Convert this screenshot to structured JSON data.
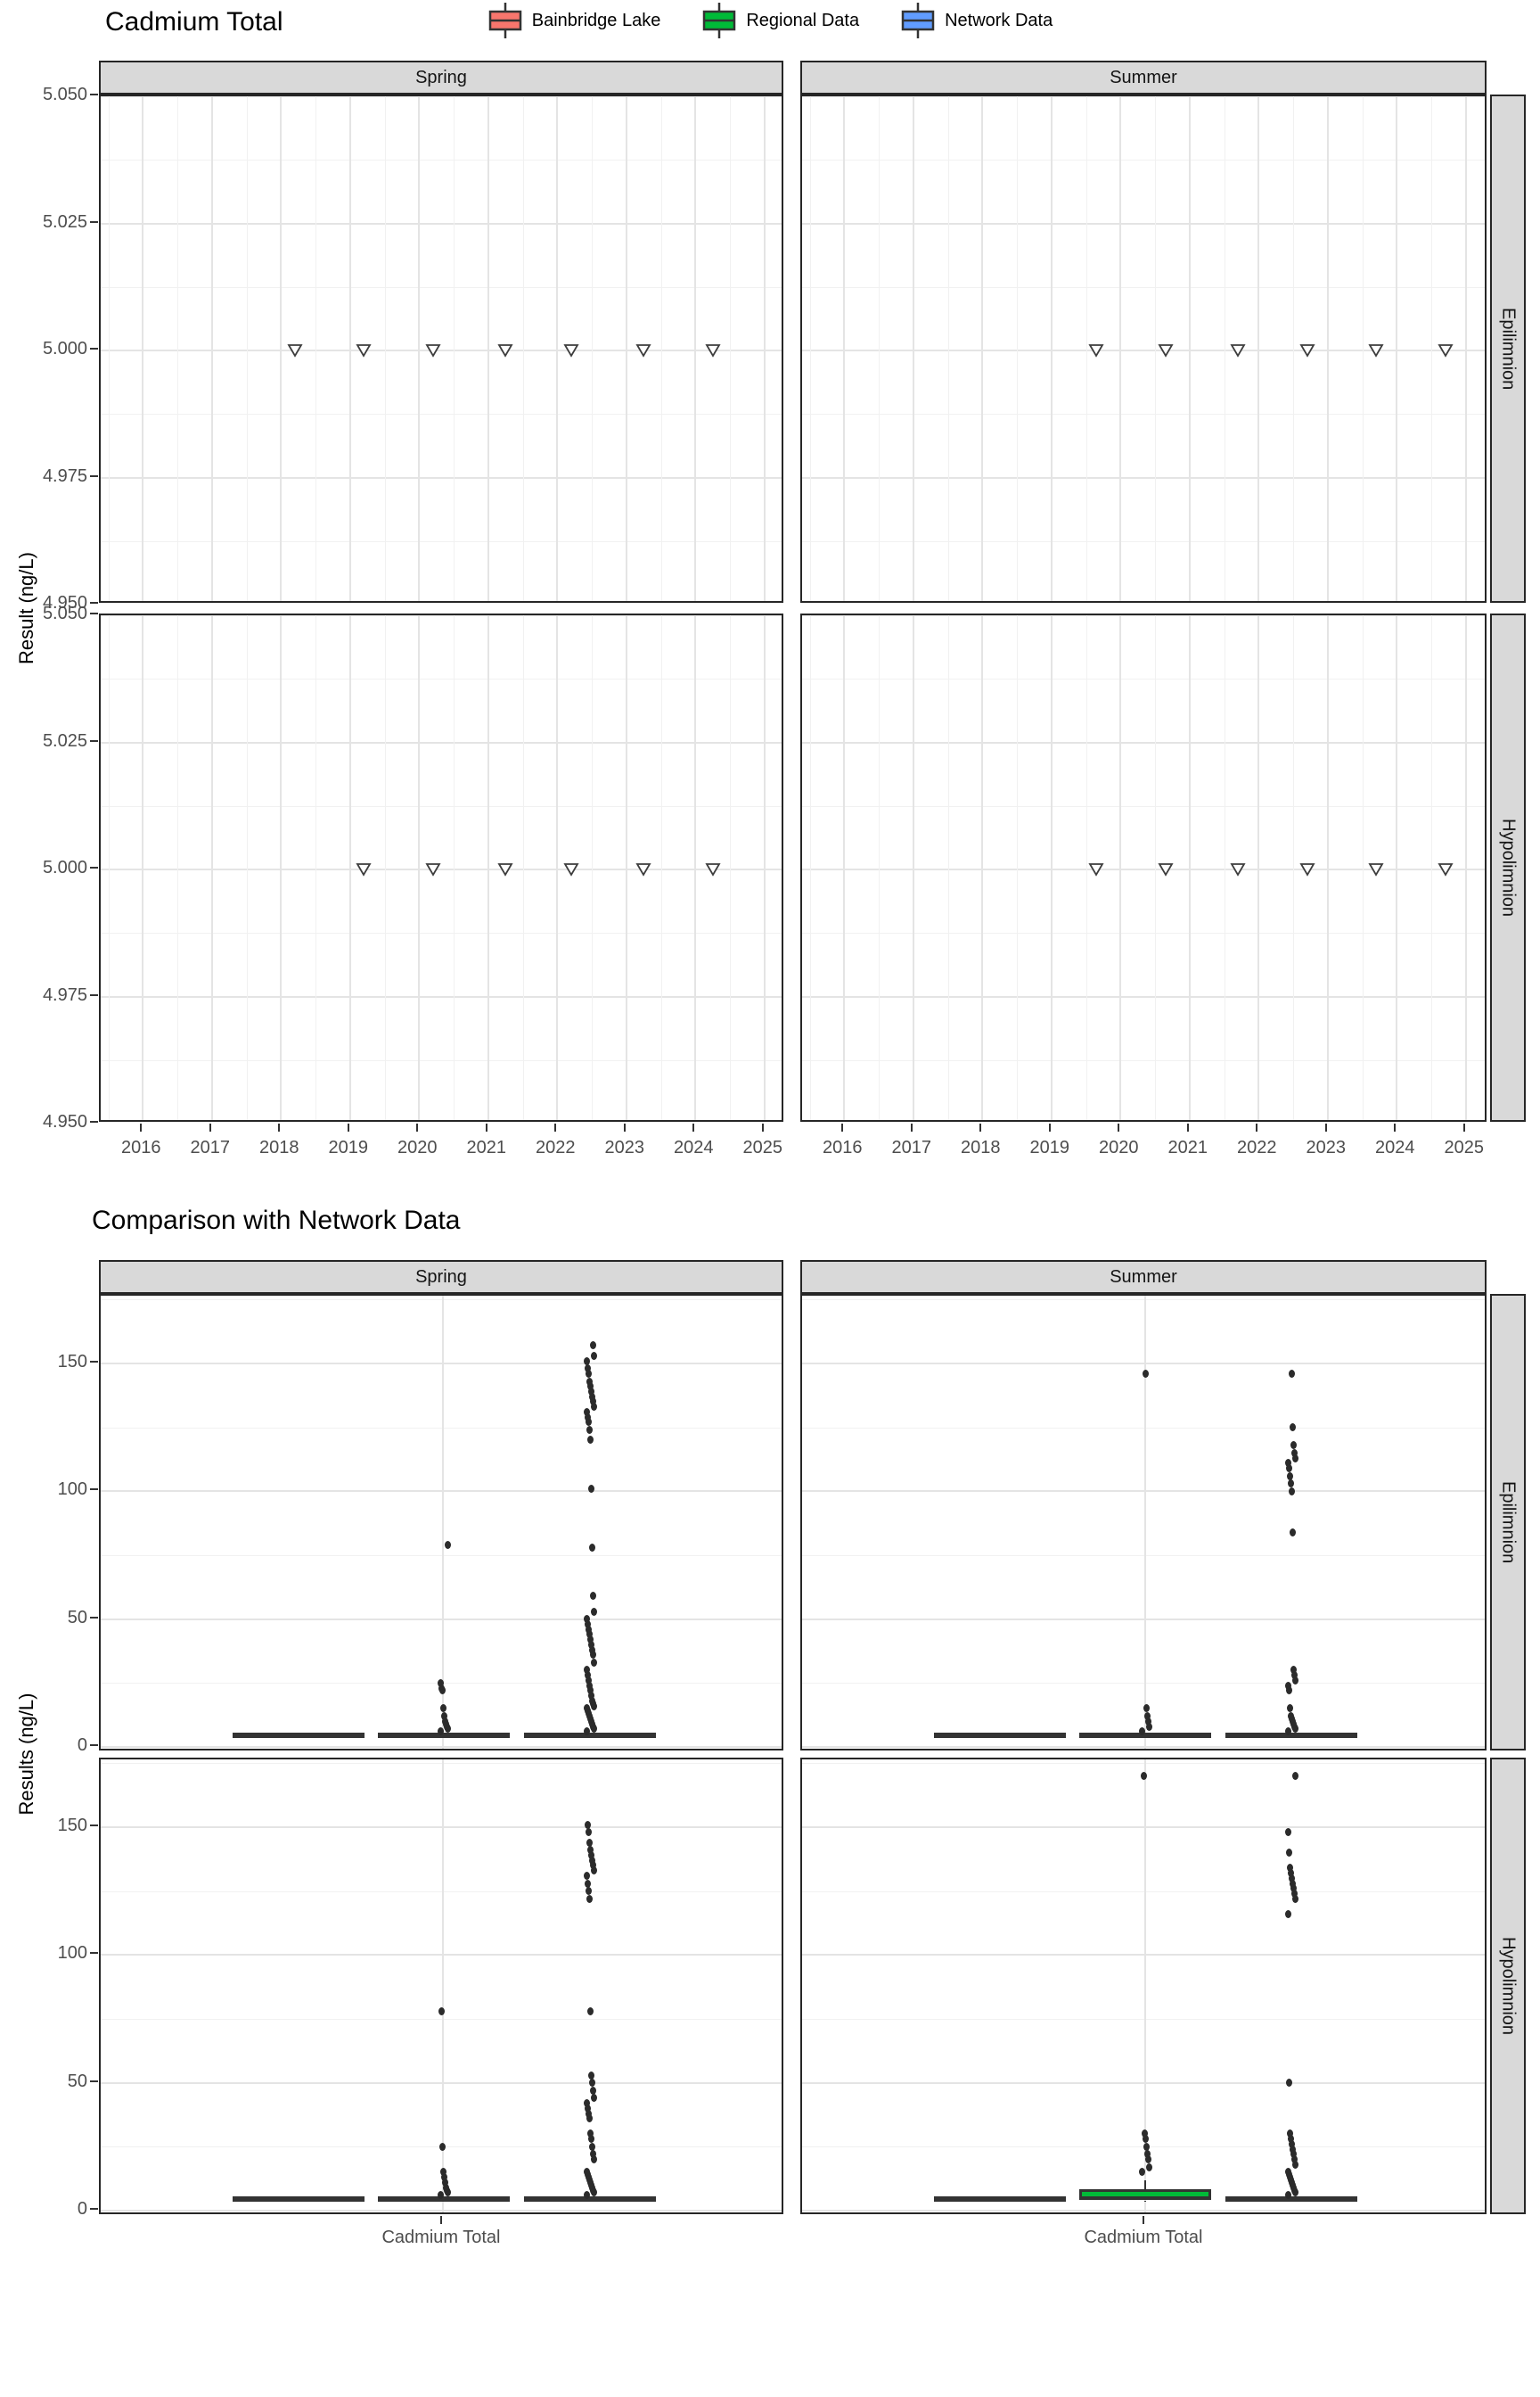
{
  "chart_data": [
    {
      "id": "plot1",
      "type": "scatter",
      "title": "Cadmium Total",
      "ylabel": "Result (ng/L)",
      "marker": "open-triangle-down",
      "facets": {
        "cols": [
          "Spring",
          "Summer"
        ],
        "rows": [
          "Epilimnion",
          "Hypolimnion"
        ]
      },
      "x_ticks": [
        2016,
        2017,
        2018,
        2019,
        2020,
        2021,
        2022,
        2023,
        2024,
        2025
      ],
      "xlim": [
        2015.39,
        2025.3
      ],
      "y_ticks": [
        "5.050",
        "5.025",
        "5.000",
        "4.975",
        "4.950"
      ],
      "ylim": [
        4.95,
        5.05
      ],
      "grid": true,
      "series": [
        {
          "facet_col": "Spring",
          "facet_row": "Epilimnion",
          "x": [
            2018.2,
            2019.2,
            2020.2,
            2021.25,
            2022.2,
            2023.25,
            2024.25
          ],
          "y": [
            5,
            5,
            5,
            5,
            5,
            5,
            5
          ]
        },
        {
          "facet_col": "Summer",
          "facet_row": "Epilimnion",
          "x": [
            2019.65,
            2020.65,
            2021.7,
            2022.7,
            2023.7,
            2024.7
          ],
          "y": [
            5,
            5,
            5,
            5,
            5,
            5
          ]
        },
        {
          "facet_col": "Spring",
          "facet_row": "Hypolimnion",
          "x": [
            2019.2,
            2020.2,
            2021.25,
            2022.2,
            2023.25,
            2024.25
          ],
          "y": [
            5,
            5,
            5,
            5,
            5,
            5
          ]
        },
        {
          "facet_col": "Summer",
          "facet_row": "Hypolimnion",
          "x": [
            2019.65,
            2020.65,
            2021.7,
            2022.7,
            2023.7,
            2024.7
          ],
          "y": [
            5,
            5,
            5,
            5,
            5,
            5
          ]
        }
      ]
    },
    {
      "id": "plot2",
      "type": "boxplot",
      "title": "Comparison with Network Data",
      "ylabel": "Results (ng/L)",
      "categories": [
        "Cadmium Total"
      ],
      "y_ticks": [
        0,
        50,
        100,
        150
      ],
      "ylim": [
        -2,
        176.5
      ],
      "facets": {
        "cols": [
          "Spring",
          "Summer"
        ],
        "rows": [
          "Epilimnion",
          "Hypolimnion"
        ]
      },
      "legend": {
        "position": "bottom",
        "entries": [
          {
            "label": "Bainbridge Lake",
            "color": "#F8766D"
          },
          {
            "label": "Regional Data",
            "color": "#00BA38"
          },
          {
            "label": "Network Data",
            "color": "#619CFF"
          }
        ]
      },
      "panels": [
        {
          "facet_col": "Spring",
          "facet_row": "Epilimnion",
          "boxes": [
            {
              "group": "Bainbridge Lake",
              "q1": 4.6,
              "median": 5,
              "q3": 5.4,
              "whisker_low": 4.6,
              "whisker_high": 5.4,
              "outliers": []
            },
            {
              "group": "Regional Data",
              "q1": 4.6,
              "median": 5,
              "q3": 5.4,
              "whisker_low": 4.6,
              "whisker_high": 5.4,
              "outliers": [
                6,
                7,
                8,
                9,
                10,
                12,
                15,
                22,
                23,
                25,
                79
              ]
            },
            {
              "group": "Network Data",
              "q1": 4.6,
              "median": 5,
              "q3": 5.4,
              "whisker_low": 4.6,
              "whisker_high": 5.4,
              "outliers": [
                6,
                7,
                8,
                9,
                10,
                11,
                12,
                13,
                14,
                15,
                16,
                17,
                18,
                20,
                22,
                24,
                26,
                28,
                30,
                33,
                36,
                38,
                40,
                42,
                44,
                46,
                48,
                50,
                53,
                59,
                78,
                101,
                120,
                124,
                127,
                129,
                131,
                133,
                135,
                137,
                139,
                141,
                143,
                146,
                148,
                151,
                153,
                157
              ]
            }
          ]
        },
        {
          "facet_col": "Summer",
          "facet_row": "Epilimnion",
          "boxes": [
            {
              "group": "Bainbridge Lake",
              "q1": 4.6,
              "median": 5,
              "q3": 5.4,
              "whisker_low": 4.6,
              "whisker_high": 5.4,
              "outliers": []
            },
            {
              "group": "Regional Data",
              "q1": 4.6,
              "median": 5,
              "q3": 5.4,
              "whisker_low": 4.6,
              "whisker_high": 5.4,
              "outliers": [
                6,
                8,
                10,
                12,
                15,
                146
              ]
            },
            {
              "group": "Network Data",
              "q1": 4.6,
              "median": 5,
              "q3": 5.4,
              "whisker_low": 4.6,
              "whisker_high": 5.4,
              "outliers": [
                6,
                7,
                8,
                9,
                10,
                11,
                12,
                15,
                22,
                24,
                26,
                28,
                30,
                84,
                100,
                103,
                106,
                109,
                111,
                113,
                115,
                118,
                125,
                146
              ]
            }
          ]
        },
        {
          "facet_col": "Spring",
          "facet_row": "Hypolimnion",
          "boxes": [
            {
              "group": "Bainbridge Lake",
              "q1": 4.6,
              "median": 5,
              "q3": 5.4,
              "whisker_low": 4.6,
              "whisker_high": 5.4,
              "outliers": []
            },
            {
              "group": "Regional Data",
              "q1": 4.6,
              "median": 5,
              "q3": 5.4,
              "whisker_low": 4.6,
              "whisker_high": 5.4,
              "outliers": [
                6,
                7,
                8,
                9,
                11,
                13,
                15,
                25,
                78
              ]
            },
            {
              "group": "Network Data",
              "q1": 4.6,
              "median": 5,
              "q3": 5.4,
              "whisker_low": 4.6,
              "whisker_high": 5.4,
              "outliers": [
                6,
                7,
                8,
                9,
                10,
                11,
                12,
                13,
                14,
                15,
                20,
                22,
                25,
                28,
                30,
                36,
                38,
                40,
                42,
                44,
                47,
                50,
                53,
                78,
                122,
                125,
                128,
                131,
                133,
                135,
                137,
                139,
                141,
                144,
                148,
                151
              ]
            }
          ]
        },
        {
          "facet_col": "Summer",
          "facet_row": "Hypolimnion",
          "boxes": [
            {
              "group": "Bainbridge Lake",
              "q1": 4.6,
              "median": 5,
              "q3": 5.4,
              "whisker_low": 4.6,
              "whisker_high": 5.4,
              "outliers": []
            },
            {
              "group": "Regional Data",
              "q1": 4,
              "median": 5,
              "q3": 8.5,
              "whisker_low": 3.5,
              "whisker_high": 12,
              "outliers": [
                15,
                17,
                20,
                22,
                25,
                28,
                30,
                170
              ]
            },
            {
              "group": "Network Data",
              "q1": 4.6,
              "median": 5,
              "q3": 5.4,
              "whisker_low": 4.6,
              "whisker_high": 5.4,
              "outliers": [
                6,
                7,
                8,
                9,
                10,
                11,
                12,
                13,
                14,
                15,
                18,
                20,
                22,
                24,
                26,
                28,
                30,
                50,
                116,
                122,
                124,
                126,
                128,
                130,
                132,
                134,
                140,
                148,
                170
              ]
            }
          ]
        }
      ]
    }
  ]
}
